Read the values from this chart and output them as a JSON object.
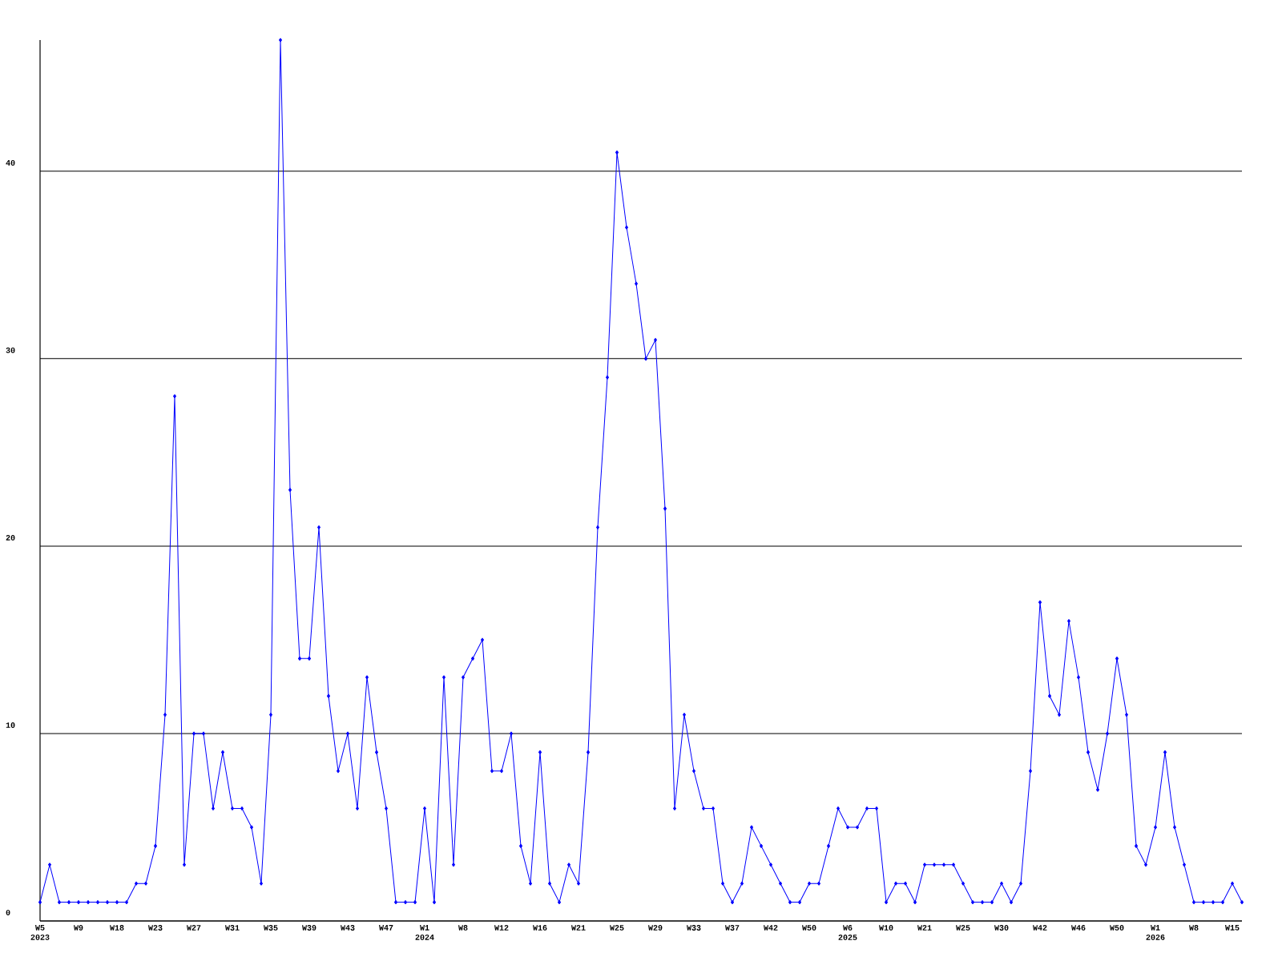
{
  "chart_data": {
    "type": "line",
    "categories": [
      "W5 2023",
      null,
      null,
      null,
      "W9",
      null,
      null,
      null,
      "W18",
      null,
      null,
      null,
      "W23",
      null,
      null,
      null,
      "W27",
      null,
      null,
      null,
      "W31",
      null,
      null,
      null,
      "W35",
      null,
      null,
      null,
      "W39",
      null,
      null,
      null,
      "W43",
      null,
      null,
      null,
      "W47",
      null,
      null,
      null,
      "W1 2024",
      null,
      null,
      null,
      "W8",
      null,
      null,
      null,
      "W12",
      null,
      null,
      null,
      "W16",
      null,
      null,
      null,
      "W21",
      null,
      null,
      null,
      "W25",
      null,
      null,
      null,
      "W29",
      null,
      null,
      null,
      "W33",
      null,
      null,
      null,
      "W37",
      null,
      null,
      null,
      "W42",
      null,
      null,
      null,
      "W50",
      null,
      null,
      null,
      "W6 2025",
      null,
      null,
      null,
      "W10",
      null,
      null,
      null,
      "W21",
      null,
      null,
      null,
      "W25",
      null,
      null,
      null,
      "W30",
      null,
      null,
      null,
      "W42",
      null,
      null,
      null,
      "W46",
      null,
      null,
      null,
      "W50",
      null,
      null,
      null,
      "W1 2026",
      null,
      null,
      null,
      "W8",
      null,
      null,
      null,
      "W15",
      null
    ],
    "values": [
      1,
      3,
      1,
      1,
      1,
      1,
      1,
      1,
      1,
      1,
      2,
      2,
      4,
      11,
      28,
      3,
      10,
      10,
      6,
      9,
      6,
      6,
      5,
      2,
      11,
      47,
      23,
      14,
      14,
      21,
      12,
      8,
      10,
      6,
      13,
      9,
      6,
      1,
      1,
      1,
      6,
      1,
      13,
      3,
      13,
      14,
      15,
      8,
      8,
      10,
      4,
      2,
      9,
      2,
      1,
      3,
      2,
      9,
      21,
      29,
      41,
      37,
      34,
      30,
      31,
      22,
      6,
      11,
      8,
      6,
      6,
      2,
      1,
      2,
      5,
      4,
      3,
      2,
      1,
      1,
      2,
      2,
      4,
      6,
      5,
      5,
      6,
      6,
      1,
      2,
      2,
      1,
      3,
      3,
      3,
      3,
      2,
      1,
      1,
      1,
      2,
      1,
      2,
      8,
      17,
      12,
      11,
      16,
      13,
      9,
      7,
      10,
      14,
      11,
      4,
      3,
      5,
      9,
      5,
      3,
      1,
      1,
      1,
      1,
      2,
      1
    ],
    "color": "#0000ff",
    "marker": "diamond",
    "ylim": [
      0,
      47
    ],
    "yticks": [
      0,
      10,
      20,
      30,
      40
    ],
    "grid": "y"
  }
}
